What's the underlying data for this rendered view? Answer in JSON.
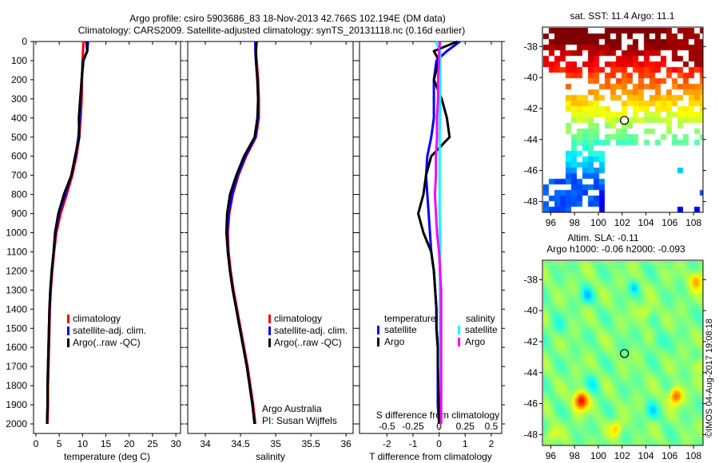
{
  "title_line1": "Argo profile: csiro 5903686_83 18-Nov-2013 42.766S 102.194E (DM data)",
  "title_line2": "Climatology: CARS2009. Satellite-adjusted climatology: synTS_20131118.nc (0.16d earlier)",
  "credit": "©IMOS 04-Aug-2017 19:08:18",
  "chart_data": [
    {
      "type": "line",
      "id": "temperature",
      "xlabel": "temperature (deg C)",
      "xlim": [
        -0.5,
        31
      ],
      "xticks": [
        0,
        5,
        10,
        15,
        20,
        25,
        30
      ],
      "xticklabels": [
        "0",
        "5",
        "10",
        "15",
        "20",
        "25",
        "30"
      ],
      "ylim": [
        0,
        2050
      ],
      "yticks": [
        0,
        100,
        200,
        300,
        400,
        500,
        600,
        700,
        800,
        900,
        1000,
        1100,
        1200,
        1300,
        1400,
        1500,
        1600,
        1700,
        1800,
        1900,
        2000
      ],
      "yticklabels": [
        "0",
        "100",
        "200",
        "300",
        "400",
        "500",
        "600",
        "700",
        "800",
        "900",
        "1000",
        "1100",
        "1200",
        "1300",
        "1400",
        "1500",
        "1600",
        "1700",
        "1800",
        "1900",
        "2000"
      ],
      "y_reversed": true,
      "depth": [
        0,
        50,
        100,
        200,
        300,
        400,
        500,
        600,
        700,
        800,
        900,
        1000,
        1100,
        1200,
        1300,
        1400,
        1500,
        1600,
        1700,
        1800,
        1900,
        2000
      ],
      "series": [
        {
          "name": "climatology",
          "color": "#ff0000",
          "values": [
            10.2,
            10.1,
            10.0,
            9.9,
            9.8,
            9.6,
            9.3,
            8.7,
            7.8,
            6.6,
            5.3,
            4.4,
            3.9,
            3.5,
            3.2,
            3.0,
            2.9,
            2.8,
            2.7,
            2.6,
            2.6,
            2.5
          ]
        },
        {
          "name": "satellite-adj. clim.",
          "color": "#0000ff",
          "values": [
            11.2,
            11.0,
            10.2,
            9.8,
            9.6,
            9.4,
            9.1,
            8.5,
            7.6,
            6.3,
            5.0,
            4.2,
            3.8,
            3.4,
            3.1,
            2.9,
            2.8,
            2.7,
            2.6,
            2.5,
            2.5,
            2.4
          ]
        },
        {
          "name": "Argo(..raw -QC)",
          "color": "#000000",
          "values": [
            10.8,
            11.0,
            10.1,
            9.8,
            9.5,
            9.2,
            9.3,
            8.4,
            7.6,
            6.0,
            4.8,
            4.1,
            3.8,
            3.4,
            3.1,
            2.9,
            2.8,
            2.7,
            2.6,
            2.5,
            2.5,
            2.4
          ]
        }
      ],
      "legend_placement": "lower-right"
    },
    {
      "type": "line",
      "id": "salinity",
      "xlabel": "salinity",
      "xlim": [
        33.75,
        36.1
      ],
      "xticks": [
        34,
        34.5,
        35,
        35.5,
        36
      ],
      "xticklabels": [
        "34",
        "34.5",
        "35",
        "35.5",
        "36"
      ],
      "ylim": [
        0,
        2050
      ],
      "y_reversed": true,
      "depth": [
        0,
        50,
        100,
        200,
        300,
        400,
        500,
        600,
        700,
        800,
        900,
        1000,
        1100,
        1200,
        1300,
        1400,
        1500,
        1600,
        1700,
        1800,
        1900,
        2000
      ],
      "series": [
        {
          "name": "climatology",
          "color": "#ff0000",
          "values": [
            34.72,
            34.72,
            34.73,
            34.75,
            34.76,
            34.76,
            34.72,
            34.58,
            34.47,
            34.39,
            34.34,
            34.32,
            34.33,
            34.36,
            34.4,
            34.45,
            34.5,
            34.55,
            34.6,
            34.64,
            34.68,
            34.71
          ]
        },
        {
          "name": "satellite-adj. clim.",
          "color": "#0000ff",
          "values": [
            34.71,
            34.71,
            34.72,
            34.74,
            34.75,
            34.75,
            34.71,
            34.57,
            34.46,
            34.38,
            34.33,
            34.31,
            34.32,
            34.35,
            34.39,
            34.44,
            34.49,
            34.54,
            34.59,
            34.63,
            34.67,
            34.7
          ]
        },
        {
          "name": "Argo(..raw -QC)",
          "color": "#000000",
          "values": [
            34.73,
            34.72,
            34.72,
            34.74,
            34.75,
            34.74,
            34.7,
            34.55,
            34.44,
            34.35,
            34.31,
            34.3,
            34.32,
            34.35,
            34.39,
            34.44,
            34.49,
            34.54,
            34.59,
            34.63,
            34.67,
            34.7
          ]
        }
      ],
      "annotations": [
        "Argo Australia",
        "PI: Susan Wijffels"
      ],
      "legend_placement": "lower-right"
    },
    {
      "type": "line",
      "id": "difference",
      "xlabel": "T difference from climatology",
      "xlim": [
        -3.05,
        2.4
      ],
      "xticks": [
        -2,
        -1,
        0,
        1,
        2
      ],
      "xticklabels": [
        "-2",
        "-1",
        "0",
        "1",
        "2"
      ],
      "x2label": "S difference from climatology",
      "x2ticks": [
        -0.5,
        -0.25,
        0,
        0.25,
        0.5
      ],
      "x2ticklabels": [
        "-0.5",
        "-0.25",
        "0",
        "0.25",
        "0.5"
      ],
      "s_to_t_scale": 4,
      "ylim": [
        0,
        2050
      ],
      "y_reversed": true,
      "depth": [
        0,
        50,
        100,
        200,
        300,
        400,
        500,
        600,
        700,
        800,
        900,
        1000,
        1100,
        1200,
        1300,
        1400,
        1500,
        1600,
        1700,
        1800,
        1900,
        2000
      ],
      "legend_headers": [
        "temperature",
        "salinity"
      ],
      "series": [
        {
          "name": "satellite",
          "group": "temperature",
          "color": "#0000ff",
          "values": [
            0.8,
            0.3,
            -0.1,
            -0.2,
            -0.2,
            -0.2,
            -0.3,
            -0.45,
            -0.5,
            -0.45,
            -0.4,
            -0.35,
            -0.3,
            -0.2,
            -0.15,
            -0.1,
            -0.1,
            -0.05,
            -0.05,
            -0.05,
            -0.05,
            0
          ]
        },
        {
          "name": "Argo",
          "group": "temperature",
          "color": "#000000",
          "values": [
            0.7,
            -0.2,
            0,
            -0.2,
            0.1,
            0.3,
            0.4,
            -0.3,
            -0.5,
            -0.6,
            -0.8,
            -0.6,
            -0.3,
            -0.2,
            -0.15,
            -0.1,
            -0.1,
            -0.05,
            -0.05,
            0,
            0,
            0
          ]
        },
        {
          "name": "satellite",
          "group": "salinity",
          "color": "#00ffff",
          "values": [
            -0.03,
            0.01,
            0.01,
            0.01,
            0.01,
            0.01,
            0.005,
            0.005,
            0.005,
            0.005,
            0.005,
            0.01,
            0.01,
            0.01,
            0.01,
            0.01,
            0.01,
            0.01,
            0.01,
            0.015,
            0.02,
            0.02
          ]
        },
        {
          "name": "Argo",
          "group": "salinity",
          "color": "#ff00ff",
          "values": [
            0.01,
            0,
            0,
            -0.01,
            -0.01,
            -0.02,
            -0.02,
            -0.03,
            -0.03,
            -0.04,
            -0.03,
            -0.02,
            0,
            0.01,
            0.02,
            0.02,
            0.02,
            0.02,
            0.02,
            0.02,
            0.02,
            0.02
          ]
        }
      ]
    },
    {
      "type": "heatmap",
      "id": "sst_map",
      "title": "sat. SST: 11.4 Argo: 11.1",
      "xlim": [
        95.3,
        108.8
      ],
      "ylim": [
        -48.7,
        -36.75
      ],
      "xticks": [
        96,
        98,
        100,
        102,
        104,
        106,
        108
      ],
      "xticklabels": [
        "96",
        "98",
        "100",
        "102",
        "104",
        "106",
        "108"
      ],
      "yticks": [
        -38,
        -40,
        -42,
        -44,
        -46,
        -48
      ],
      "yticklabels": [
        "-38",
        "-40",
        "-42",
        "-44",
        "-46",
        "-48"
      ],
      "marker": {
        "lon": 102.194,
        "lat": -42.766
      }
    },
    {
      "type": "heatmap",
      "id": "sla_map",
      "title": "Altim. SLA: -0.11",
      "subtitle": "Argo h1000: -0.06 h2000: -0.093",
      "xlim": [
        95.3,
        108.8
      ],
      "ylim": [
        -48.7,
        -36.75
      ],
      "xticks": [
        96,
        98,
        100,
        102,
        104,
        106,
        108
      ],
      "xticklabels": [
        "96",
        "98",
        "100",
        "102",
        "104",
        "106",
        "108"
      ],
      "yticks": [
        -38,
        -40,
        -42,
        -44,
        -46,
        -48
      ],
      "yticklabels": [
        "-38",
        "-40",
        "-42",
        "-44",
        "-46",
        "-48"
      ],
      "marker": {
        "lon": 102.194,
        "lat": -42.766
      }
    }
  ]
}
